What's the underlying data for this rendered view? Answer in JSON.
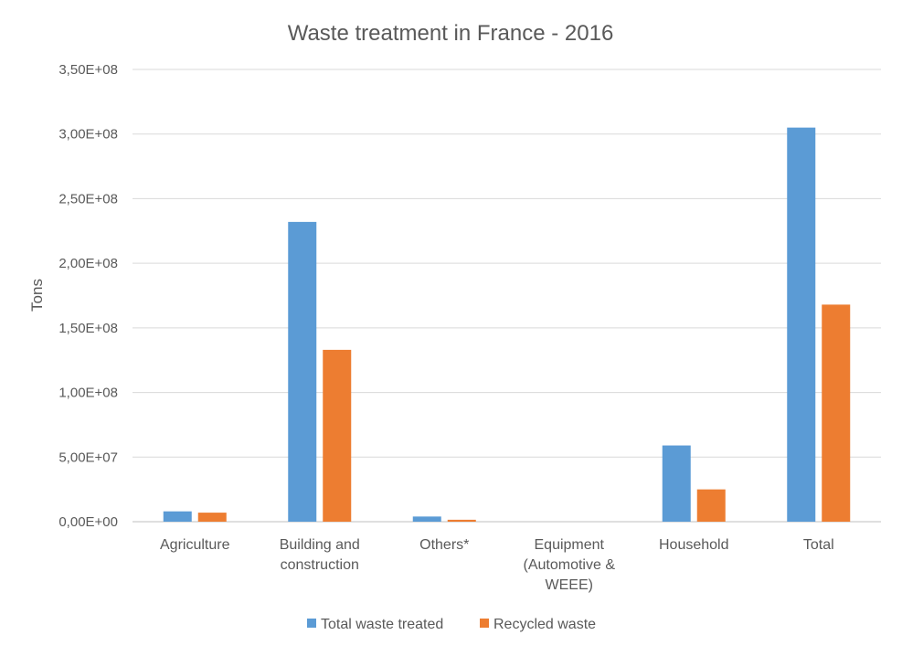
{
  "chart_data": {
    "type": "bar",
    "title": "Waste treatment in France - 2016",
    "xlabel": "",
    "ylabel": "Tons",
    "ylim": [
      0,
      350000000
    ],
    "y_ticks": [
      {
        "value": 0,
        "label": "0,00E+00"
      },
      {
        "value": 50000000,
        "label": "5,00E+07"
      },
      {
        "value": 100000000,
        "label": "1,00E+08"
      },
      {
        "value": 150000000,
        "label": "1,50E+08"
      },
      {
        "value": 200000000,
        "label": "2,00E+08"
      },
      {
        "value": 250000000,
        "label": "2,50E+08"
      },
      {
        "value": 300000000,
        "label": "3,00E+08"
      },
      {
        "value": 350000000,
        "label": "3,50E+08"
      }
    ],
    "grid": true,
    "legend_position": "bottom",
    "categories": [
      [
        "Agriculture"
      ],
      [
        "Building and",
        "construction"
      ],
      [
        "Others*"
      ],
      [
        "Equipment",
        "(Automotive &",
        "WEEE)"
      ],
      [
        "Household"
      ],
      [
        "Total"
      ]
    ],
    "series": [
      {
        "name": "Total waste treated",
        "color": "#5b9bd5",
        "values": [
          8000000,
          232000000,
          4000000,
          0,
          59000000,
          305000000
        ]
      },
      {
        "name": "Recycled waste",
        "color": "#ed7d31",
        "values": [
          7000000,
          133000000,
          1500000,
          0,
          25000000,
          168000000
        ]
      }
    ]
  }
}
